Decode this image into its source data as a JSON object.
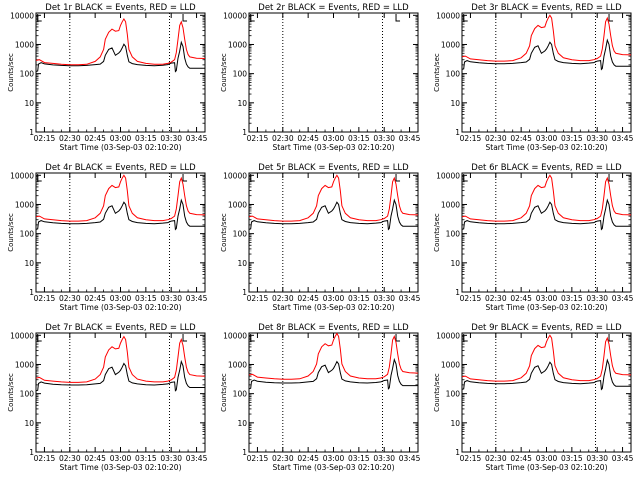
{
  "chart_data": {
    "type": "line",
    "xlabel": "Start Time (03-Sep-03 02:10:20)",
    "ylabel": "Counts/sec",
    "x_range_min": [
      0,
      100
    ],
    "x_ticks_min": [
      5,
      20,
      35,
      50,
      65,
      80,
      95
    ],
    "x_tick_labels": [
      "02:15",
      "02:30",
      "02:45",
      "03:00",
      "03:15",
      "03:30",
      "03:45"
    ],
    "y_scale": "log",
    "y_range": [
      1,
      12000
    ],
    "y_ticks": [
      1,
      10,
      100,
      1000,
      10000
    ],
    "y_tick_labels": [
      "1",
      "10",
      "100",
      "1000",
      "10000"
    ],
    "series_colors": {
      "events": "#000000",
      "lld": "#ff0000"
    },
    "vertical_markers_min": [
      20,
      79
    ],
    "corner_markers_min": [
      1,
      87
    ],
    "panels": [
      {
        "title": "Det 1r BLACK = Events, RED = LLD",
        "empty": false,
        "lld_scale": 0.75,
        "evt_scale": 0.85
      },
      {
        "title": "Det 2r BLACK = Events, RED = LLD",
        "empty": true,
        "lld_scale": 1.0,
        "evt_scale": 1.0
      },
      {
        "title": "Det 3r BLACK = Events, RED = LLD",
        "empty": false,
        "lld_scale": 1.0,
        "evt_scale": 1.0
      },
      {
        "title": "Det 4r BLACK = Events, RED = LLD",
        "empty": false,
        "lld_scale": 1.0,
        "evt_scale": 1.0
      },
      {
        "title": "Det 5r BLACK = Events, RED = LLD",
        "empty": false,
        "lld_scale": 1.0,
        "evt_scale": 1.0
      },
      {
        "title": "Det 6r BLACK = Events, RED = LLD",
        "empty": false,
        "lld_scale": 1.0,
        "evt_scale": 1.0
      },
      {
        "title": "Det 7r BLACK = Events, RED = LLD",
        "empty": false,
        "lld_scale": 0.9,
        "evt_scale": 0.9
      },
      {
        "title": "Det 8r BLACK = Events, RED = LLD",
        "empty": false,
        "lld_scale": 1.15,
        "evt_scale": 1.05
      },
      {
        "title": "Det 9r BLACK = Events, RED = LLD",
        "empty": false,
        "lld_scale": 1.0,
        "evt_scale": 1.0
      }
    ],
    "lld_profile": [
      [
        0,
        380
      ],
      [
        2,
        400
      ],
      [
        5,
        320
      ],
      [
        10,
        300
      ],
      [
        15,
        280
      ],
      [
        20,
        270
      ],
      [
        25,
        270
      ],
      [
        30,
        280
      ],
      [
        35,
        350
      ],
      [
        38,
        500
      ],
      [
        40,
        900
      ],
      [
        41,
        2000
      ],
      [
        43,
        3500
      ],
      [
        45,
        4500
      ],
      [
        47,
        3800
      ],
      [
        49,
        4000
      ],
      [
        50,
        6000
      ],
      [
        51,
        8000
      ],
      [
        52,
        10000
      ],
      [
        53,
        8000
      ],
      [
        54,
        3000
      ],
      [
        55,
        900
      ],
      [
        57,
        500
      ],
      [
        60,
        350
      ],
      [
        65,
        300
      ],
      [
        70,
        280
      ],
      [
        75,
        280
      ],
      [
        78,
        300
      ],
      [
        80,
        330
      ],
      [
        82,
        400
      ],
      [
        83,
        700
      ],
      [
        84,
        2000
      ],
      [
        85,
        6000
      ],
      [
        86,
        8000
      ],
      [
        87,
        5000
      ],
      [
        88,
        2000
      ],
      [
        89,
        900
      ],
      [
        90,
        600
      ],
      [
        91,
        500
      ],
      [
        95,
        450
      ],
      [
        100,
        440
      ]
    ],
    "events_profile": [
      [
        0,
        140
      ],
      [
        1,
        145
      ],
      [
        1.5,
        250
      ],
      [
        3,
        280
      ],
      [
        5,
        255
      ],
      [
        10,
        235
      ],
      [
        15,
        225
      ],
      [
        20,
        220
      ],
      [
        25,
        220
      ],
      [
        30,
        225
      ],
      [
        35,
        240
      ],
      [
        38,
        250
      ],
      [
        40,
        310
      ],
      [
        41,
        500
      ],
      [
        43,
        800
      ],
      [
        45,
        900
      ],
      [
        47,
        500
      ],
      [
        49,
        600
      ],
      [
        50,
        700
      ],
      [
        51,
        900
      ],
      [
        52,
        1200
      ],
      [
        53,
        1000
      ],
      [
        54,
        500
      ],
      [
        55,
        300
      ],
      [
        57,
        260
      ],
      [
        60,
        240
      ],
      [
        65,
        225
      ],
      [
        70,
        220
      ],
      [
        75,
        230
      ],
      [
        78,
        240
      ],
      [
        80,
        270
      ],
      [
        82,
        280
      ],
      [
        82.5,
        140
      ],
      [
        83,
        150
      ],
      [
        84,
        400
      ],
      [
        85,
        700
      ],
      [
        86,
        1400
      ],
      [
        87,
        1000
      ],
      [
        88,
        400
      ],
      [
        89,
        250
      ],
      [
        90,
        200
      ],
      [
        91,
        180
      ],
      [
        95,
        180
      ],
      [
        100,
        180
      ]
    ]
  }
}
